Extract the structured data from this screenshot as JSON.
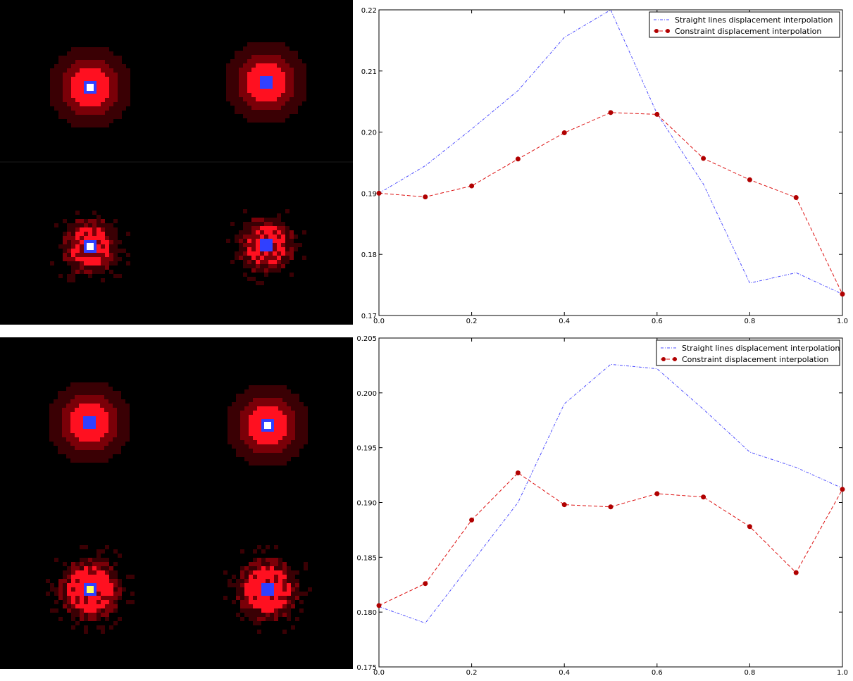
{
  "colors": {
    "straight": "#4d4dff",
    "constraint": "#dd1111",
    "constraint_marker": "#b00000",
    "heat_red": "#ff1020",
    "heat_dark_red": "#7a0008",
    "heat_blue": "#3040ff",
    "heat_white": "#ffffff",
    "heat_yellow": "#ffff60"
  },
  "chart_data": [
    {
      "type": "line",
      "title": "",
      "xlabel": "",
      "ylabel": "",
      "xlim": [
        0.0,
        1.0
      ],
      "ylim": [
        0.17,
        0.22
      ],
      "grid": false,
      "legend_position": "top-right",
      "xticks": [
        "0.0",
        "0.2",
        "0.4",
        "0.6",
        "0.8",
        "1.0"
      ],
      "yticks": [
        "0.17",
        "0.18",
        "0.19",
        "0.20",
        "0.21",
        "0.22"
      ],
      "x": [
        0.0,
        0.1,
        0.2,
        0.3,
        0.4,
        0.5,
        0.6,
        0.7,
        0.8,
        0.9,
        1.0
      ],
      "series": [
        {
          "name": "Straight lines displacement interpolation",
          "style": "dash-dot",
          "marker": "none",
          "values": [
            0.19,
            0.1945,
            0.2005,
            0.2068,
            0.2155,
            0.22,
            0.203,
            0.1915,
            0.1753,
            0.177,
            0.1735
          ]
        },
        {
          "name": "Constraint displacement interpolation",
          "style": "dashed",
          "marker": "circle",
          "values": [
            0.19,
            0.1894,
            0.1912,
            0.1956,
            0.1999,
            0.2032,
            0.2029,
            0.1957,
            0.1922,
            0.1893,
            0.1735
          ]
        }
      ]
    },
    {
      "type": "line",
      "title": "",
      "xlabel": "",
      "ylabel": "",
      "xlim": [
        0.0,
        1.0
      ],
      "ylim": [
        0.175,
        0.205
      ],
      "grid": false,
      "legend_position": "top-right",
      "xticks": [
        "0.0",
        "0.2",
        "0.4",
        "0.6",
        "0.8",
        "1.0"
      ],
      "yticks": [
        "0.175",
        "0.180",
        "0.185",
        "0.190",
        "0.195",
        "0.200",
        "0.205"
      ],
      "x": [
        0.0,
        0.1,
        0.2,
        0.3,
        0.4,
        0.5,
        0.6,
        0.7,
        0.8,
        0.9,
        1.0
      ],
      "series": [
        {
          "name": "Straight lines displacement interpolation",
          "style": "dash-dot",
          "marker": "none",
          "values": [
            0.1805,
            0.179,
            0.1845,
            0.19,
            0.199,
            0.2026,
            0.2022,
            0.1985,
            0.1946,
            0.1932,
            0.1913
          ]
        },
        {
          "name": "Constraint displacement interpolation",
          "style": "dashed",
          "marker": "circle",
          "values": [
            0.1806,
            0.1826,
            0.1884,
            0.1927,
            0.1898,
            0.1896,
            0.1908,
            0.1905,
            0.1878,
            0.1836,
            0.1912
          ]
        }
      ]
    }
  ],
  "image_panels": [
    {
      "name": "heatmaps-top",
      "spots": [
        {
          "label": "top-left",
          "pattern": "ring-white-center"
        },
        {
          "label": "top-right",
          "pattern": "ring-blue-center"
        },
        {
          "label": "bottom-left",
          "pattern": "blob-white-center"
        },
        {
          "label": "bottom-right",
          "pattern": "blob-blue-center"
        }
      ]
    },
    {
      "name": "heatmaps-bottom",
      "spots": [
        {
          "label": "top-left",
          "pattern": "ring-blue-center"
        },
        {
          "label": "top-right",
          "pattern": "ring-white-center"
        },
        {
          "label": "bottom-left",
          "pattern": "star-yellow-center"
        },
        {
          "label": "bottom-right",
          "pattern": "star-blue-center"
        }
      ]
    }
  ]
}
